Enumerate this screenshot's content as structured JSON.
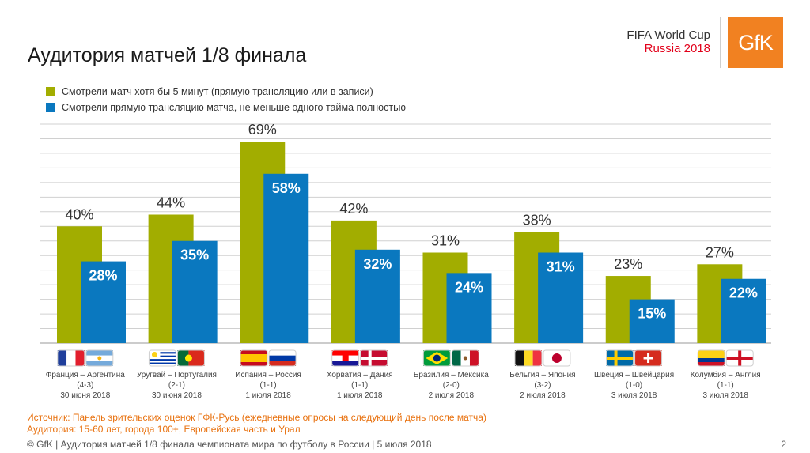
{
  "header": {
    "title": "Аудитория матчей 1/8 финала",
    "brand_line1": "FIFA World Cup",
    "brand_line2": "Russia 2018",
    "logo_text": "GfK"
  },
  "colors": {
    "green": "#a2ad00",
    "blue": "#0a78bf",
    "grid": "#d0d0d0",
    "logo": "#f18121"
  },
  "legend": [
    {
      "label": "Смотрели матч хотя бы 5 минут (прямую трансляцию или в записи)",
      "color": "#a2ad00"
    },
    {
      "label": "Смотрели прямую трансляцию матча, не меньше одного тайма полностью",
      "color": "#0a78bf"
    }
  ],
  "chart_data": {
    "type": "bar",
    "title": "Аудитория матчей 1/8 финала",
    "ylim": [
      0,
      75
    ],
    "grid": true,
    "legend_position": "top-left",
    "categories": [
      {
        "match": "Франция – Аргентина",
        "score": "(4-3)",
        "date": "30 июня 2018",
        "flags": [
          "france-flag",
          "argentina-flag"
        ]
      },
      {
        "match": "Уругвай – Португалия",
        "score": "(2-1)",
        "date": "30 июня 2018",
        "flags": [
          "uruguay-flag",
          "portugal-flag"
        ]
      },
      {
        "match": "Испания – Россия",
        "score": "(1-1)",
        "date": "1 июля 2018",
        "flags": [
          "spain-flag",
          "russia-flag"
        ]
      },
      {
        "match": "Хорватия – Дания",
        "score": "(1-1)",
        "date": "1 июля 2018",
        "flags": [
          "croatia-flag",
          "denmark-flag"
        ]
      },
      {
        "match": "Бразилия – Мексика",
        "score": "(2-0)",
        "date": "2 июля 2018",
        "flags": [
          "brazil-flag",
          "mexico-flag"
        ]
      },
      {
        "match": "Бельгия – Япония",
        "score": "(3-2)",
        "date": "2 июля 2018",
        "flags": [
          "belgium-flag",
          "japan-flag"
        ]
      },
      {
        "match": "Швеция – Швейцария",
        "score": "(1-0)",
        "date": "3 июля 2018",
        "flags": [
          "sweden-flag",
          "switzerland-flag"
        ]
      },
      {
        "match": "Колумбия – Англия",
        "score": "(1-1)",
        "date": "3 июля 2018",
        "flags": [
          "colombia-flag",
          "england-flag"
        ]
      }
    ],
    "series": [
      {
        "name": "Смотрели матч хотя бы 5 минут (прямую трансляцию или в записи)",
        "values": [
          40,
          44,
          69,
          42,
          31,
          38,
          23,
          27
        ],
        "labels": [
          "40%",
          "44%",
          "69%",
          "42%",
          "31%",
          "38%",
          "23%",
          "27%"
        ]
      },
      {
        "name": "Смотрели прямую трансляцию матча, не меньше одного тайма полностью",
        "values": [
          28,
          35,
          58,
          32,
          24,
          31,
          15,
          22
        ],
        "labels": [
          "28%",
          "35%",
          "58%",
          "32%",
          "24%",
          "31%",
          "15%",
          "22%"
        ]
      }
    ]
  },
  "source": {
    "line1": "Источник: Панель зрительских оценок ГФК-Русь (ежедневные опросы на следующий день после матча)",
    "line2": "Аудитория: 15-60 лет, города 100+, Европейская часть и Урал"
  },
  "footer": {
    "text": "© GfK | Аудитория матчей 1/8 финала чемпионата мира по футболу в России | 5 июля 2018",
    "page": "2"
  }
}
